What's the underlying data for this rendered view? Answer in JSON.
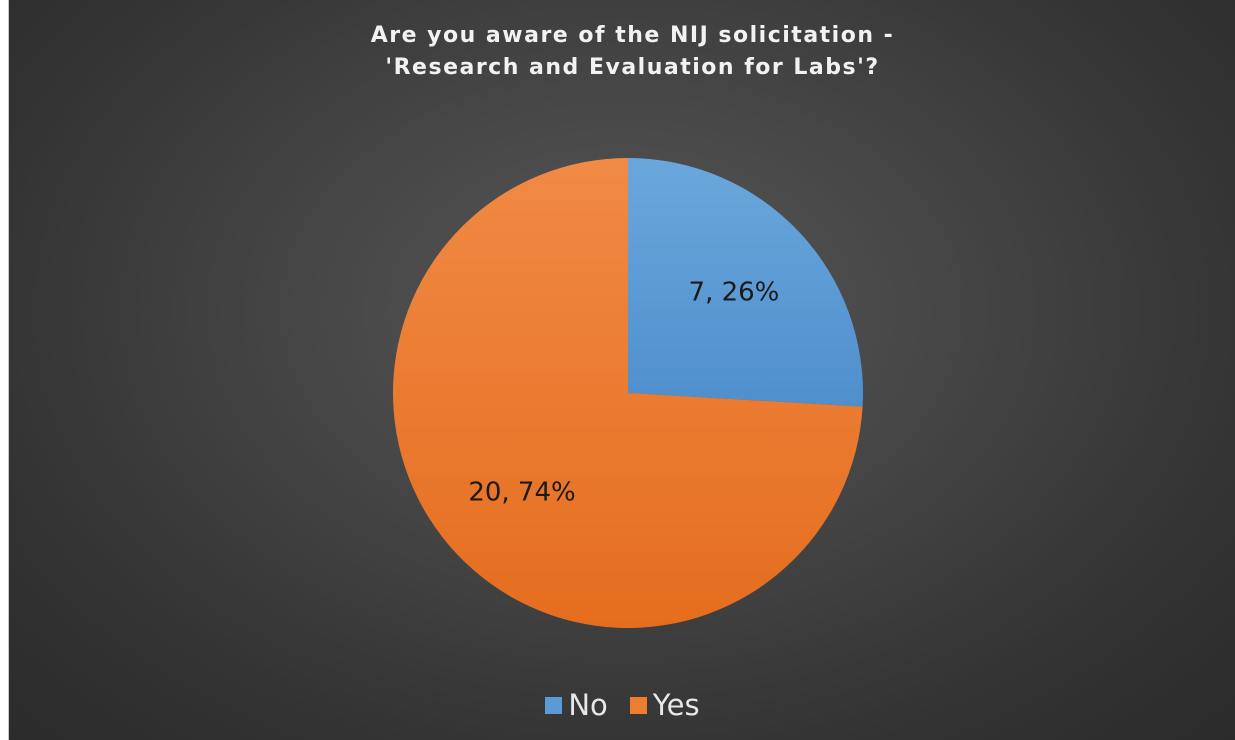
{
  "chart_data": {
    "type": "pie",
    "title_lines": [
      "Are you aware of the NIJ solicitation -",
      "'Research and Evaluation for Labs'?"
    ],
    "categories": [
      "No",
      "Yes"
    ],
    "values": [
      7,
      20
    ],
    "percentages": [
      26,
      74
    ],
    "data_labels": [
      "7, 26%",
      "20, 74%"
    ],
    "colors": [
      "#5b9bd5",
      "#ed7d31"
    ],
    "legend_position": "bottom",
    "start_angle": "12 o'clock, clockwise"
  },
  "legend": {
    "items": [
      {
        "label": "No",
        "color": "#5b9bd5"
      },
      {
        "label": "Yes",
        "color": "#ed7d31"
      }
    ]
  }
}
